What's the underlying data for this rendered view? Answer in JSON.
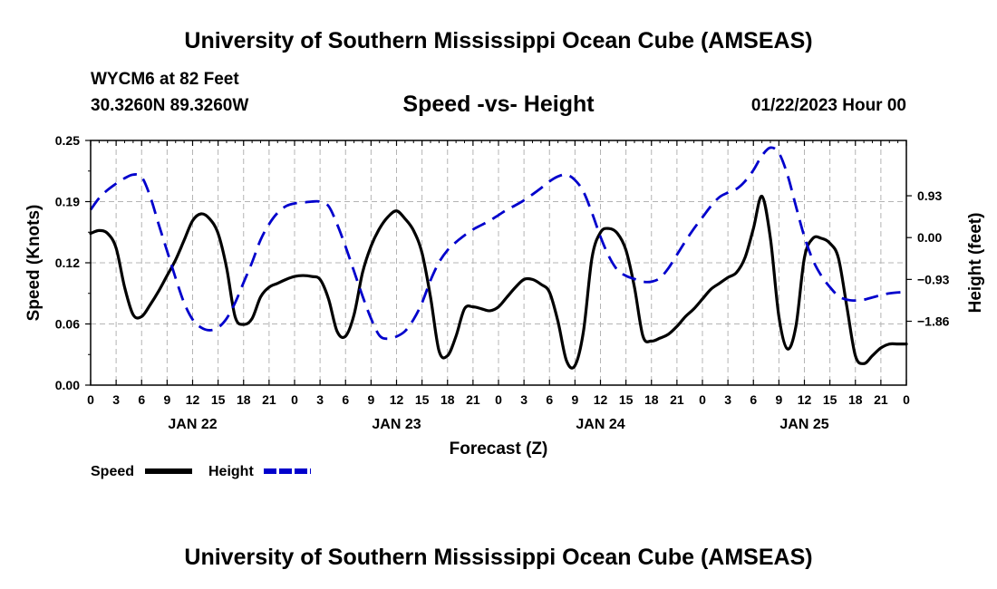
{
  "page": {
    "title": "University of Southern Mississippi Ocean Cube (AMSEAS)",
    "station": "WYCM6 at 82 Feet",
    "coords": "30.3260N  89.3260W",
    "subtitle": "Speed -vs- Height",
    "date": "01/22/2023 Hour 00",
    "footer_title": "University of Southern Mississippi Ocean Cube (AMSEAS)"
  },
  "chart_data": {
    "type": "line",
    "title": "Speed -vs- Height",
    "xlabel": "Forecast (Z)",
    "ylabel": "Speed (Knots)",
    "y2label": "Height (feet)",
    "xlim": [
      0,
      96
    ],
    "ylim": [
      0,
      0.25
    ],
    "y2lim": [
      -3.28,
      2.16
    ],
    "x_tick_values": [
      0,
      3,
      6,
      9,
      12,
      15,
      18,
      21,
      24,
      27,
      30,
      33,
      36,
      39,
      42,
      45,
      48,
      51,
      54,
      57,
      60,
      63,
      66,
      69,
      72,
      75,
      78,
      81,
      84,
      87,
      90,
      93,
      96
    ],
    "x_tick_labels": [
      "0",
      "3",
      "6",
      "9",
      "12",
      "15",
      "18",
      "21",
      "0",
      "3",
      "6",
      "9",
      "12",
      "15",
      "18",
      "21",
      "0",
      "3",
      "6",
      "9",
      "12",
      "15",
      "18",
      "21",
      "0",
      "3",
      "6",
      "9",
      "12",
      "15",
      "18",
      "21",
      "0"
    ],
    "day_labels": [
      {
        "x": 12,
        "label": "JAN 22"
      },
      {
        "x": 36,
        "label": "JAN 23"
      },
      {
        "x": 60,
        "label": "JAN 24"
      },
      {
        "x": 84,
        "label": "JAN 25"
      }
    ],
    "y_tick_values": [
      0,
      0.0625,
      0.125,
      0.1875,
      0.25
    ],
    "y_tick_labels": [
      "0.00",
      "0.06",
      "0.12",
      "0.19",
      "0.25"
    ],
    "y2_tick_values": [
      -1.86,
      -0.93,
      0.0,
      0.93
    ],
    "y2_tick_labels": [
      "−1.86",
      "−0.93",
      "0.00",
      "0.93"
    ],
    "grid": true,
    "legend": [
      {
        "name": "Speed",
        "color": "#000000",
        "dashed": false
      },
      {
        "name": "Height",
        "color": "#0000cc",
        "dashed": true
      }
    ],
    "series": [
      {
        "name": "Speed",
        "axis": "left",
        "color": "#000000",
        "x": [
          0,
          1,
          2,
          3,
          4,
          5,
          6,
          7,
          8,
          9,
          10,
          11,
          12,
          13,
          14,
          15,
          16,
          17,
          18,
          19,
          20,
          21,
          22,
          23,
          24,
          25,
          26,
          27,
          28,
          29,
          30,
          31,
          32,
          33,
          34,
          35,
          36,
          37,
          38,
          39,
          40,
          41,
          42,
          43,
          44,
          45,
          46,
          47,
          48,
          49,
          50,
          51,
          52,
          53,
          54,
          55,
          56,
          57,
          58,
          59,
          60,
          61,
          62,
          63,
          64,
          65,
          66,
          67,
          68,
          69,
          70,
          71,
          72,
          73,
          74,
          75,
          76,
          77,
          78,
          79,
          80,
          81,
          82,
          83,
          84,
          85,
          86,
          87,
          88,
          89,
          90,
          91,
          92,
          93,
          94,
          95,
          96
        ],
        "values": [
          0.155,
          0.158,
          0.155,
          0.14,
          0.1,
          0.072,
          0.07,
          0.082,
          0.096,
          0.112,
          0.128,
          0.148,
          0.168,
          0.175,
          0.17,
          0.155,
          0.12,
          0.07,
          0.062,
          0.068,
          0.09,
          0.1,
          0.104,
          0.108,
          0.111,
          0.112,
          0.111,
          0.108,
          0.088,
          0.055,
          0.05,
          0.072,
          0.115,
          0.142,
          0.16,
          0.172,
          0.178,
          0.17,
          0.158,
          0.135,
          0.09,
          0.035,
          0.03,
          0.05,
          0.078,
          0.08,
          0.078,
          0.076,
          0.08,
          0.09,
          0.1,
          0.108,
          0.108,
          0.103,
          0.095,
          0.065,
          0.025,
          0.02,
          0.055,
          0.13,
          0.156,
          0.16,
          0.155,
          0.138,
          0.1,
          0.05,
          0.045,
          0.048,
          0.052,
          0.06,
          0.07,
          0.078,
          0.088,
          0.098,
          0.104,
          0.11,
          0.115,
          0.13,
          0.16,
          0.193,
          0.15,
          0.07,
          0.037,
          0.06,
          0.13,
          0.15,
          0.15,
          0.145,
          0.13,
          0.08,
          0.03,
          0.022,
          0.03,
          0.038,
          0.042,
          0.042,
          0.042
        ]
      },
      {
        "name": "Height",
        "axis": "right",
        "color": "#0000cc",
        "x": [
          0,
          1,
          2,
          3,
          4,
          5,
          6,
          7,
          8,
          9,
          10,
          11,
          12,
          13,
          14,
          15,
          16,
          17,
          18,
          19,
          20,
          21,
          22,
          23,
          24,
          25,
          26,
          27,
          28,
          29,
          30,
          31,
          32,
          33,
          34,
          35,
          36,
          37,
          38,
          39,
          40,
          41,
          42,
          43,
          44,
          45,
          46,
          47,
          48,
          49,
          50,
          51,
          52,
          53,
          54,
          55,
          56,
          57,
          58,
          59,
          60,
          61,
          62,
          63,
          64,
          65,
          66,
          67,
          68,
          69,
          70,
          71,
          72,
          73,
          74,
          75,
          76,
          77,
          78,
          79,
          80,
          81,
          82,
          83,
          84,
          85,
          86,
          87,
          88,
          89,
          90,
          91,
          92,
          93,
          94,
          95,
          96
        ],
        "values": [
          0.62,
          0.88,
          1.06,
          1.2,
          1.32,
          1.4,
          1.35,
          0.92,
          0.3,
          -0.3,
          -0.9,
          -1.45,
          -1.82,
          -2.0,
          -2.06,
          -2.0,
          -1.8,
          -1.45,
          -1.0,
          -0.55,
          -0.05,
          0.3,
          0.55,
          0.7,
          0.76,
          0.78,
          0.8,
          0.8,
          0.7,
          0.3,
          -0.2,
          -0.75,
          -1.3,
          -1.8,
          -2.18,
          -2.25,
          -2.2,
          -2.08,
          -1.82,
          -1.45,
          -0.95,
          -0.55,
          -0.28,
          -0.1,
          0.05,
          0.18,
          0.28,
          0.38,
          0.5,
          0.62,
          0.72,
          0.83,
          0.96,
          1.1,
          1.25,
          1.36,
          1.4,
          1.28,
          1.02,
          0.55,
          0.02,
          -0.42,
          -0.72,
          -0.85,
          -0.92,
          -0.98,
          -0.98,
          -0.9,
          -0.68,
          -0.38,
          -0.08,
          0.2,
          0.45,
          0.7,
          0.9,
          1.0,
          1.08,
          1.25,
          1.5,
          1.82,
          2.0,
          1.88,
          1.4,
          0.7,
          0.02,
          -0.5,
          -0.85,
          -1.1,
          -1.3,
          -1.38,
          -1.4,
          -1.38,
          -1.33,
          -1.28,
          -1.24,
          -1.22,
          -1.21
        ]
      }
    ]
  }
}
